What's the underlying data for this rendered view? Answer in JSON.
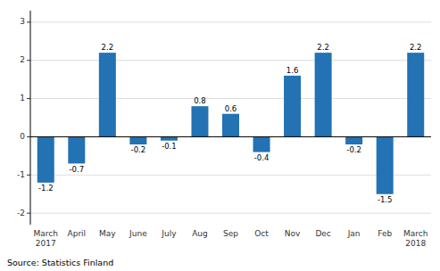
{
  "chart_data": {
    "type": "bar",
    "categories": [
      "March\n2017",
      "April",
      "May",
      "June",
      "July",
      "Aug",
      "Sep",
      "Oct",
      "Nov",
      "Dec",
      "Jan",
      "Feb",
      "March\n2018"
    ],
    "values": [
      -1.2,
      -0.7,
      2.2,
      -0.2,
      -0.1,
      0.8,
      0.6,
      -0.4,
      1.6,
      2.2,
      -0.2,
      -1.5,
      2.2
    ],
    "color": "#2272b4",
    "ylim": [
      -2.3,
      3.3
    ],
    "yticks": [
      -2,
      -1,
      0,
      1,
      2,
      3
    ],
    "grid": true,
    "data_labels": true,
    "annotations": [
      "Source: Statistics Finland"
    ]
  }
}
